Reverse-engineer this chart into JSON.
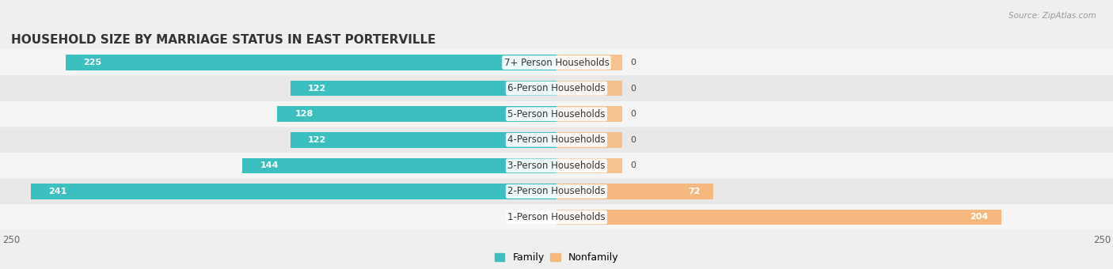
{
  "title": "HOUSEHOLD SIZE BY MARRIAGE STATUS IN EAST PORTERVILLE",
  "source": "Source: ZipAtlas.com",
  "categories": [
    "7+ Person Households",
    "6-Person Households",
    "5-Person Households",
    "4-Person Households",
    "3-Person Households",
    "2-Person Households",
    "1-Person Households"
  ],
  "family_values": [
    225,
    122,
    128,
    122,
    144,
    241,
    0
  ],
  "nonfamily_values": [
    0,
    0,
    0,
    0,
    0,
    72,
    204
  ],
  "family_color": "#3bbfbf",
  "nonfamily_color": "#f5b97f",
  "axis_limit": 250,
  "bg_color": "#efefef",
  "row_bg_even": "#f5f5f5",
  "row_bg_odd": "#e8e8e8",
  "title_fontsize": 11,
  "label_fontsize": 8.5,
  "value_fontsize": 8,
  "legend_fontsize": 9,
  "bar_height": 0.6,
  "nonfamily_stub": 30
}
